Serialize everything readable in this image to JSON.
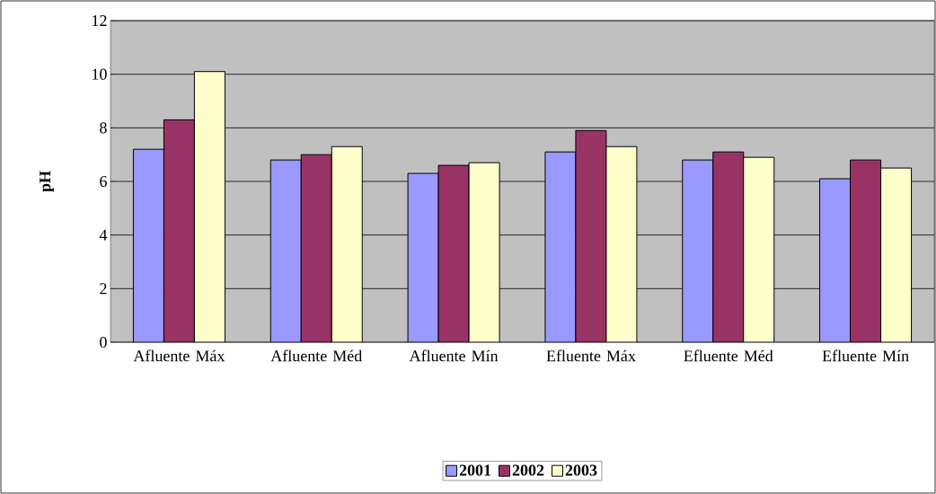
{
  "chart_data": {
    "type": "bar",
    "ylabel": "pH",
    "categories": [
      "Afluente Máx",
      "Afluente Méd",
      "Afluente Mín",
      "Efluente Máx",
      "Efluente Méd",
      "Efluente Mín"
    ],
    "series": [
      {
        "name": "2001",
        "color": "#9999ff",
        "values": [
          7.2,
          6.8,
          6.3,
          7.1,
          6.8,
          6.1
        ]
      },
      {
        "name": "2002",
        "color": "#993366",
        "values": [
          8.3,
          7.0,
          6.6,
          7.9,
          7.1,
          6.8
        ]
      },
      {
        "name": "2003",
        "color": "#ffffcc",
        "values": [
          10.1,
          7.3,
          6.7,
          7.3,
          6.9,
          6.5
        ]
      }
    ],
    "ylim": [
      0,
      12
    ],
    "yticks": [
      0,
      2,
      4,
      6,
      8,
      10,
      12
    ],
    "grid": "y",
    "legend": "bottom"
  }
}
